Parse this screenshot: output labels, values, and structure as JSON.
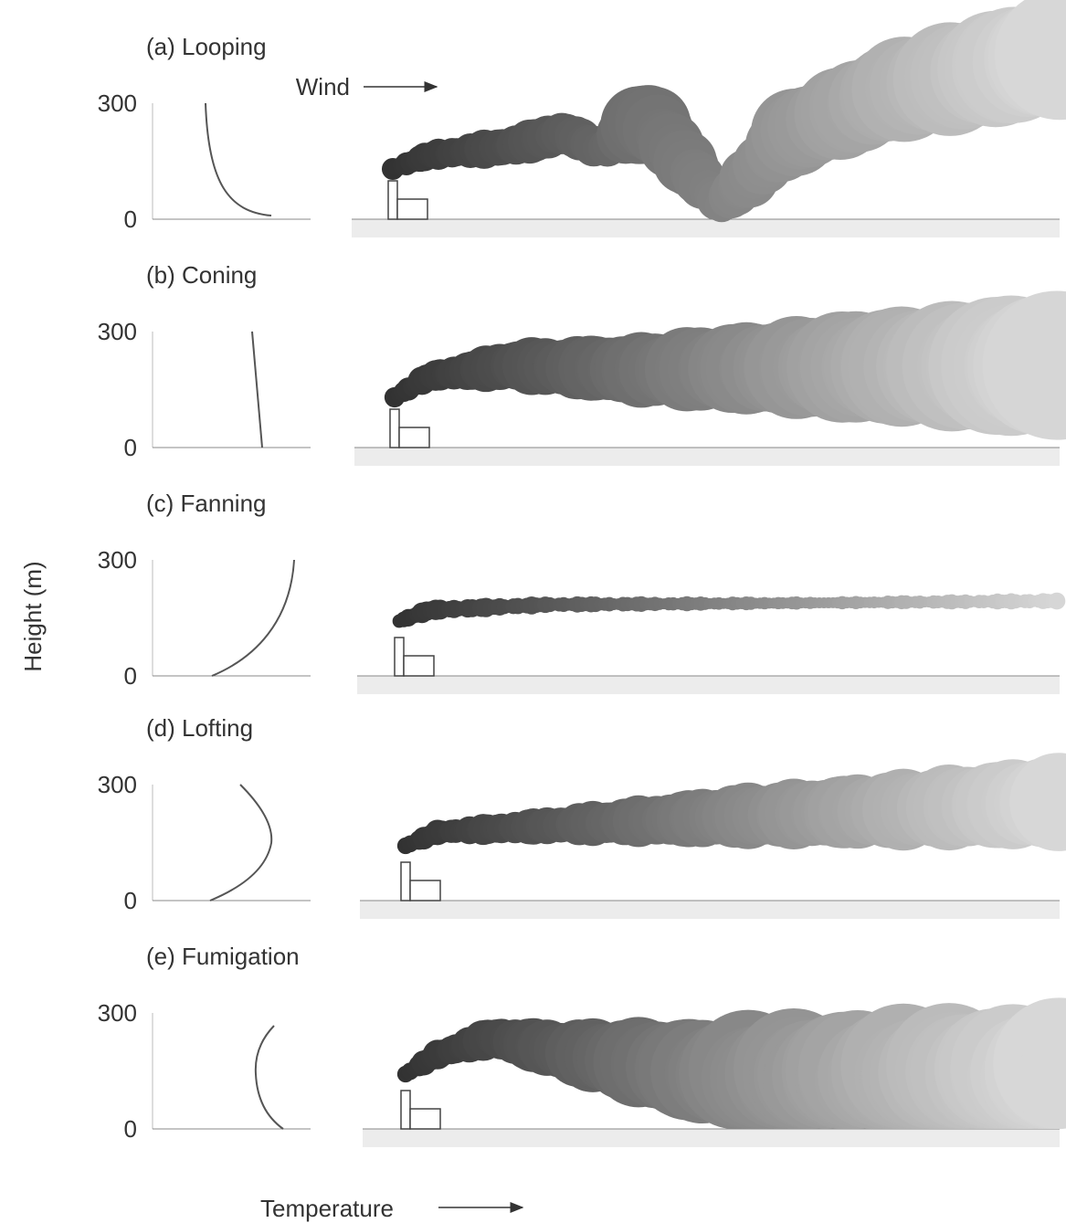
{
  "axis_label": "Height (m)",
  "x_label": "Temperature",
  "wind_label": "Wind",
  "panels": [
    {
      "title": "(a) Looping",
      "yticks": [
        "300",
        "0"
      ]
    },
    {
      "title": "(b) Coning",
      "yticks": [
        "300",
        "0"
      ]
    },
    {
      "title": "(c) Fanning",
      "yticks": [
        "300",
        "0"
      ]
    },
    {
      "title": "(d) Lofting",
      "yticks": [
        "300",
        "0"
      ]
    },
    {
      "title": "(e) Fumigation",
      "yticks": [
        "300",
        "0"
      ]
    }
  ]
}
